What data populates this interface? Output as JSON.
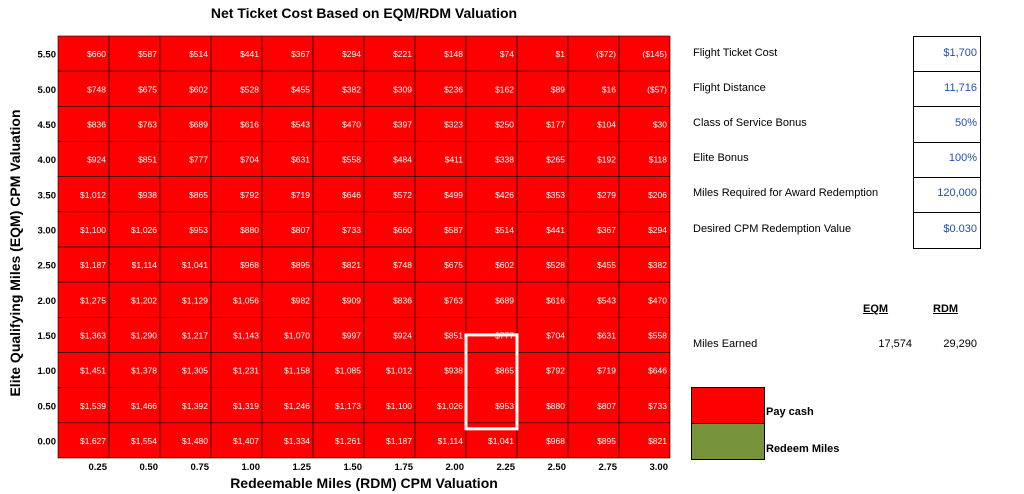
{
  "chart_data": {
    "type": "heatmap",
    "title": "Net Ticket Cost Based on EQM/RDM Valuation",
    "xlabel": "Redeemable Miles (RDM) CPM Valuation",
    "ylabel": "Elite Qualifying Miles (EQM) CPM Valuation",
    "x": [
      "0.25",
      "0.50",
      "0.75",
      "1.00",
      "1.25",
      "1.50",
      "1.75",
      "2.00",
      "2.25",
      "2.50",
      "2.75",
      "3.00"
    ],
    "y": [
      "5.50",
      "5.00",
      "4.50",
      "4.00",
      "3.50",
      "3.00",
      "2.50",
      "2.00",
      "1.50",
      "1.00",
      "0.50",
      "0.00"
    ],
    "cells": [
      [
        "$660",
        "$587",
        "$514",
        "$441",
        "$367",
        "$294",
        "$221",
        "$148",
        "$74",
        "$1",
        "($72)",
        "($145)"
      ],
      [
        "$748",
        "$675",
        "$602",
        "$528",
        "$455",
        "$382",
        "$309",
        "$236",
        "$162",
        "$89",
        "$16",
        "($57)"
      ],
      [
        "$836",
        "$763",
        "$689",
        "$616",
        "$543",
        "$470",
        "$397",
        "$323",
        "$250",
        "$177",
        "$104",
        "$30"
      ],
      [
        "$924",
        "$851",
        "$777",
        "$704",
        "$631",
        "$558",
        "$484",
        "$411",
        "$338",
        "$265",
        "$192",
        "$118"
      ],
      [
        "$1,012",
        "$938",
        "$865",
        "$792",
        "$719",
        "$646",
        "$572",
        "$499",
        "$426",
        "$353",
        "$279",
        "$206"
      ],
      [
        "$1,100",
        "$1,026",
        "$953",
        "$880",
        "$807",
        "$733",
        "$660",
        "$587",
        "$514",
        "$441",
        "$367",
        "$294"
      ],
      [
        "$1,187",
        "$1,114",
        "$1,041",
        "$968",
        "$895",
        "$821",
        "$748",
        "$675",
        "$602",
        "$528",
        "$455",
        "$382"
      ],
      [
        "$1,275",
        "$1,202",
        "$1,129",
        "$1,056",
        "$982",
        "$909",
        "$836",
        "$763",
        "$689",
        "$616",
        "$543",
        "$470"
      ],
      [
        "$1,363",
        "$1,290",
        "$1,217",
        "$1,143",
        "$1,070",
        "$997",
        "$924",
        "$851",
        "$777",
        "$704",
        "$631",
        "$558"
      ],
      [
        "$1,451",
        "$1,378",
        "$1,305",
        "$1,231",
        "$1,158",
        "$1,085",
        "$1,012",
        "$938",
        "$865",
        "$792",
        "$719",
        "$646"
      ],
      [
        "$1,539",
        "$1,466",
        "$1,392",
        "$1,319",
        "$1,246",
        "$1,173",
        "$1,100",
        "$1,026",
        "$953",
        "$880",
        "$807",
        "$733"
      ],
      [
        "$1,627",
        "$1,554",
        "$1,480",
        "$1,407",
        "$1,334",
        "$1,261",
        "$1,187",
        "$1,114",
        "$1,041",
        "$968",
        "$895",
        "$821"
      ]
    ],
    "highlight": {
      "x": "2.25",
      "y_range": [
        "1.50",
        "0.50"
      ]
    },
    "colors": {
      "pay_cash": "#ff0000",
      "redeem_miles": "#77933c",
      "highlight": "#ffffff"
    },
    "legend": [
      {
        "label": "Pay cash",
        "color": "#ff0000"
      },
      {
        "label": "Redeem Miles",
        "color": "#77933c"
      }
    ]
  },
  "inputs": [
    {
      "label": "Flight Ticket Cost",
      "value": "$1,700"
    },
    {
      "label": "Flight Distance",
      "value": "11,716"
    },
    {
      "label": "Class of Service Bonus",
      "value": "50%"
    },
    {
      "label": "Elite Bonus",
      "value": "100%"
    },
    {
      "label": "Miles Required for Award Redemption",
      "value": "120,000"
    },
    {
      "label": "Desired CPM Redemption Value",
      "value": "$0.030"
    }
  ],
  "miles_table": {
    "headers": [
      "EQM",
      "RDM"
    ],
    "row_label": "Miles Earned",
    "eqm": "17,574",
    "rdm": "29,290"
  }
}
